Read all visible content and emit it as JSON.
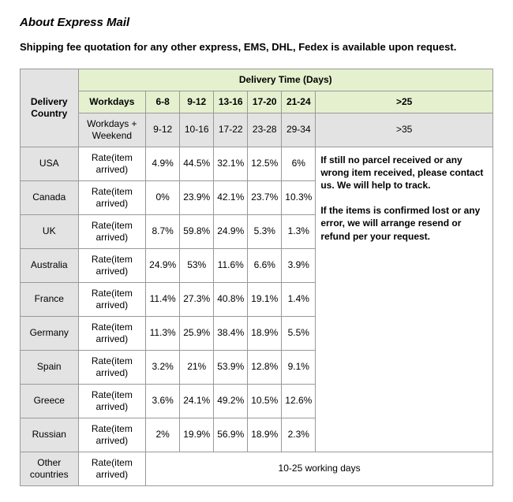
{
  "title": "About Express Mail",
  "intro": "Shipping fee quotation for any other express, EMS, DHL, Fedex is available upon request.",
  "table": {
    "corner": "Delivery Country",
    "top_header": "Delivery Time (Days)",
    "row1_label": "Workdays",
    "row1": [
      "6-8",
      "9-12",
      "13-16",
      "17-20",
      "21-24",
      ">25"
    ],
    "row2_label": "Workdays + Weekend",
    "row2": [
      "9-12",
      "10-16",
      "17-22",
      "23-28",
      "29-34",
      ">35"
    ],
    "rate_label": "Rate(item arrived)",
    "countries": [
      {
        "name": "USA",
        "vals": [
          "4.9%",
          "44.5%",
          "32.1%",
          "12.5%",
          "6%"
        ]
      },
      {
        "name": "Canada",
        "vals": [
          "0%",
          "23.9%",
          "42.1%",
          "23.7%",
          "10.3%"
        ]
      },
      {
        "name": "UK",
        "vals": [
          "8.7%",
          "59.8%",
          "24.9%",
          "5.3%",
          "1.3%"
        ]
      },
      {
        "name": "Australia",
        "vals": [
          "24.9%",
          "53%",
          "11.6%",
          "6.6%",
          "3.9%"
        ]
      },
      {
        "name": "France",
        "vals": [
          "11.4%",
          "27.3%",
          "40.8%",
          "19.1%",
          "1.4%"
        ]
      },
      {
        "name": "Germany",
        "vals": [
          "11.3%",
          "25.9%",
          "38.4%",
          "18.9%",
          "5.5%"
        ]
      },
      {
        "name": "Spain",
        "vals": [
          "3.2%",
          "21%",
          "53.9%",
          "12.8%",
          "9.1%"
        ]
      },
      {
        "name": "Greece",
        "vals": [
          "3.6%",
          "24.1%",
          "49.2%",
          "10.5%",
          "12.6%"
        ]
      },
      {
        "name": "Russian",
        "vals": [
          "2%",
          "19.9%",
          "56.9%",
          "18.9%",
          "2.3%"
        ]
      }
    ],
    "other_label": "Other countries",
    "other_value": "10-25 working days",
    "note_1": "If still no parcel received or any wrong item received, please contact us. We will help to track.",
    "note_2": "If the items is confirmed lost or any error, we will arrange resend or refund per your request."
  }
}
